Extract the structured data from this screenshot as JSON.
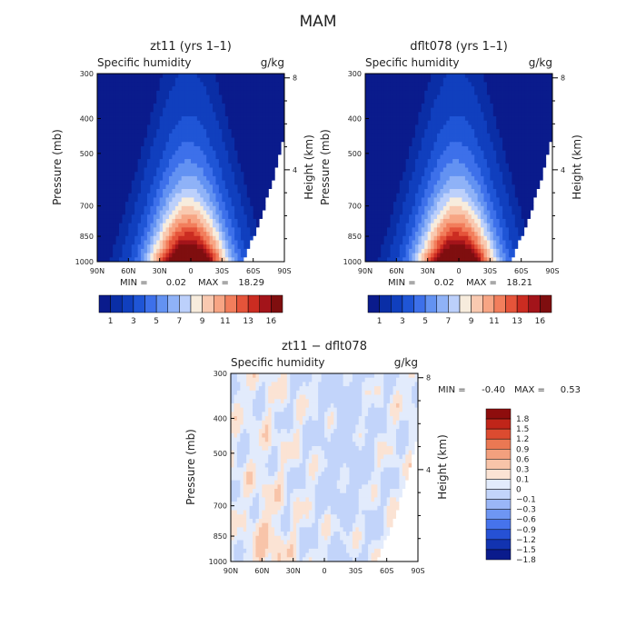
{
  "figure": {
    "title": "MAM",
    "colors": {
      "seq": [
        "#0a1b8c",
        "#0a2ea6",
        "#103fbe",
        "#1f55d6",
        "#3d70ea",
        "#6392f2",
        "#8fb2f7",
        "#bcd0fb",
        "#f7ecdd",
        "#f9c9b0",
        "#f7a584",
        "#f27e5c",
        "#e5543a",
        "#cb2c21",
        "#a3141a",
        "#7f0e0f"
      ],
      "div": [
        "#0a1b8c",
        "#1233b0",
        "#2651d4",
        "#4673ec",
        "#6e96f3",
        "#9ab6f7",
        "#c2d4fa",
        "#e2ebfc",
        "#fbe3d4",
        "#f8c4a9",
        "#f3a07e",
        "#ea7853",
        "#dc4b30",
        "#c02519",
        "#8e0d0d"
      ]
    }
  },
  "chart_data": [
    {
      "type": "heatmap",
      "title": "zt11 (yrs 1–1)",
      "subtitle_left": "Specific humidity",
      "subtitle_right": "g/kg",
      "ylabel": "Pressure (mb)",
      "ylabel_right": "Height (km)",
      "x_ticks": [
        "90N",
        "60N",
        "30N",
        "0",
        "30S",
        "60S",
        "90S"
      ],
      "y_ticks": [
        "300",
        "400",
        "500",
        "700",
        "850",
        "1000"
      ],
      "y_right_ticks": [
        "8",
        "4"
      ],
      "min_label": "MIN =",
      "min_value": "0.02",
      "max_label": "MAX =",
      "max_value": "18.29",
      "min": 0.02,
      "max": 18.29,
      "colorbar_labels": [
        "1",
        "3",
        "5",
        "7",
        "9",
        "11",
        "13",
        "16"
      ],
      "colorbar_levels": [
        0.5,
        1,
        2,
        3,
        4,
        5,
        6,
        7,
        8,
        9,
        10,
        11,
        12,
        13,
        14,
        16
      ]
    },
    {
      "type": "heatmap",
      "title": "dflt078 (yrs 1–1)",
      "subtitle_left": "Specific humidity",
      "subtitle_right": "g/kg",
      "ylabel": "Pressure (mb)",
      "ylabel_right": "Height (km)",
      "x_ticks": [
        "90N",
        "60N",
        "30N",
        "0",
        "30S",
        "60S",
        "90S"
      ],
      "y_ticks": [
        "300",
        "400",
        "500",
        "700",
        "850",
        "1000"
      ],
      "y_right_ticks": [
        "8",
        "4"
      ],
      "min_label": "MIN =",
      "min_value": "0.02",
      "max_label": "MAX =",
      "max_value": "18.21",
      "min": 0.02,
      "max": 18.21,
      "colorbar_labels": [
        "1",
        "3",
        "5",
        "7",
        "9",
        "11",
        "13",
        "16"
      ],
      "colorbar_levels": [
        0.5,
        1,
        2,
        3,
        4,
        5,
        6,
        7,
        8,
        9,
        10,
        11,
        12,
        13,
        14,
        16
      ]
    },
    {
      "type": "heatmap",
      "title": "zt11 − dflt078",
      "subtitle_left": "Specific humidity",
      "subtitle_right": "g/kg",
      "ylabel": "Pressure (mb)",
      "ylabel_right": "Height (km)",
      "x_ticks": [
        "90N",
        "60N",
        "30N",
        "0",
        "30S",
        "60S",
        "90S"
      ],
      "y_ticks": [
        "300",
        "400",
        "500",
        "700",
        "850",
        "1000"
      ],
      "y_right_ticks": [
        "8",
        "4"
      ],
      "min_label": "MIN =",
      "min_value": "-0.40",
      "max_label": "MAX =",
      "max_value": "0.53",
      "min": -0.4,
      "max": 0.53,
      "colorbar_labels": [
        "1.8",
        "1.5",
        "1.2",
        "0.9",
        "0.6",
        "0.3",
        "0.1",
        "0",
        "−0.1",
        "−0.3",
        "−0.6",
        "−0.9",
        "−1.2",
        "−1.5",
        "−1.8"
      ],
      "colorbar_levels": [
        -1.8,
        -1.5,
        -1.2,
        -0.9,
        -0.6,
        -0.3,
        -0.1,
        0,
        0.1,
        0.3,
        0.6,
        0.9,
        1.2,
        1.5,
        1.8
      ]
    }
  ]
}
